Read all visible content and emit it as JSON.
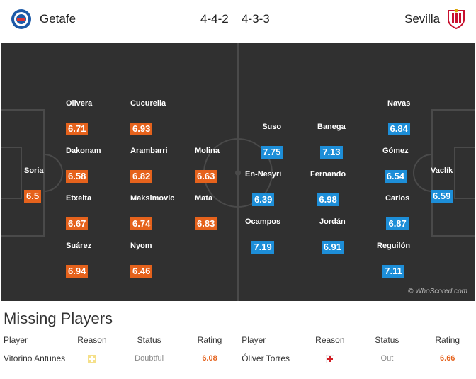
{
  "header": {
    "home_team": "Getafe",
    "away_team": "Sevilla",
    "home_formation": "4-4-2",
    "away_formation": "4-3-3",
    "home_crest_icon": "getafe-crest-icon",
    "away_crest_icon": "sevilla-crest-icon"
  },
  "colors": {
    "home_rating": "#e5621c",
    "away_rating": "#1d8ed8",
    "pitch": "#303030"
  },
  "pitch": {
    "watermark": "© WhoScored.com",
    "home_players": [
      {
        "name": "Soria",
        "rating": "6.5"
      },
      {
        "name": "Olivera",
        "rating": "6.71"
      },
      {
        "name": "Dakonam",
        "rating": "6.58"
      },
      {
        "name": "Etxeita",
        "rating": "6.67"
      },
      {
        "name": "Suárez",
        "rating": "6.94"
      },
      {
        "name": "Cucurella",
        "rating": "6.93"
      },
      {
        "name": "Arambarri",
        "rating": "6.82"
      },
      {
        "name": "Maksimovic",
        "rating": "6.74"
      },
      {
        "name": "Nyom",
        "rating": "6.46"
      },
      {
        "name": "Molina",
        "rating": "6.63"
      },
      {
        "name": "Mata",
        "rating": "6.83"
      }
    ],
    "away_players": [
      {
        "name": "Vaclík",
        "rating": "6.59"
      },
      {
        "name": "Navas",
        "rating": "6.84"
      },
      {
        "name": "Gómez",
        "rating": "6.54"
      },
      {
        "name": "Carlos",
        "rating": "6.87"
      },
      {
        "name": "Reguilón",
        "rating": "7.11"
      },
      {
        "name": "Banega",
        "rating": "7.13"
      },
      {
        "name": "Fernando",
        "rating": "6.98"
      },
      {
        "name": "Jordán",
        "rating": "6.91"
      },
      {
        "name": "Suso",
        "rating": "7.75"
      },
      {
        "name": "En-Nesyri",
        "rating": "6.39"
      },
      {
        "name": "Ocampos",
        "rating": "7.19"
      }
    ]
  },
  "missing": {
    "title": "Missing Players",
    "headers": [
      "Player",
      "Reason",
      "Status",
      "Rating",
      "Player",
      "Reason",
      "Status",
      "Rating"
    ],
    "home": {
      "player": "Vitorino Antunes",
      "reason_icon": "doubtful-cross-icon",
      "status": "Doubtful",
      "rating": "6.08"
    },
    "away": {
      "player": "Óliver Torres",
      "reason_icon": "injury-cross-icon",
      "status": "Out",
      "rating": "6.66"
    }
  }
}
